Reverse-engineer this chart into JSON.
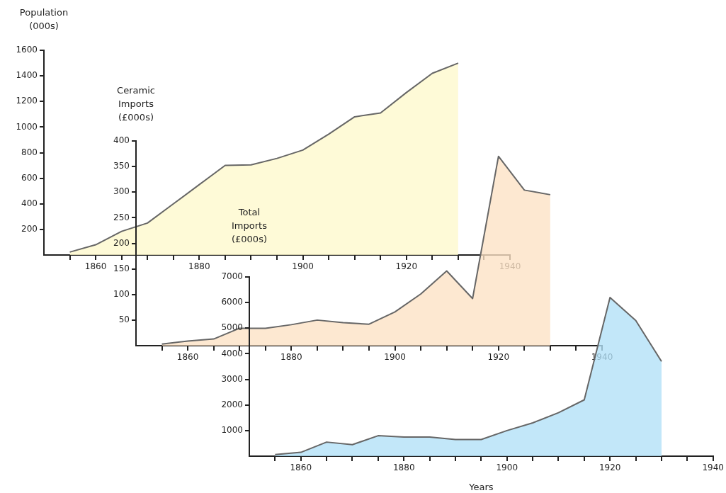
{
  "chart_data": [
    {
      "type": "area",
      "ylabel": "Population\n(000s)",
      "x": [
        1855,
        1860,
        1865,
        1870,
        1875,
        1880,
        1885,
        1890,
        1895,
        1900,
        1905,
        1910,
        1915,
        1920,
        1925,
        1930
      ],
      "series": [
        {
          "color": "#fef8cc",
          "values": [
            23,
            80,
            185,
            250,
            400,
            550,
            700,
            705,
            755,
            820,
            945,
            1080,
            1110,
            1270,
            1420,
            1500
          ]
        }
      ],
      "xlim": [
        1850,
        1940
      ],
      "xticks": [
        {
          "value": 1855,
          "label": null
        },
        1860,
        {
          "value": 1865,
          "label": null
        },
        {
          "value": 1870,
          "label": null
        },
        {
          "value": 1875,
          "label": null
        },
        1880,
        {
          "value": 1885,
          "label": null
        },
        {
          "value": 1890,
          "label": null
        },
        {
          "value": 1895,
          "label": null
        },
        1900,
        {
          "value": 1905,
          "label": null
        },
        {
          "value": 1910,
          "label": null
        },
        {
          "value": 1915,
          "label": null
        },
        1920,
        {
          "value": 1925,
          "label": null
        },
        {
          "value": 1930,
          "label": null
        },
        {
          "value": 1935,
          "label": null
        },
        1940
      ],
      "ylim": [
        0,
        1600
      ],
      "yticks": [
        200,
        400,
        600,
        800,
        1000,
        1200,
        1400,
        1600
      ],
      "grid": false,
      "legend": false
    },
    {
      "type": "area",
      "ylabel": "Ceramic\nImports\n(£000s)",
      "x": [
        1855,
        1860,
        1865,
        1870,
        1875,
        1880,
        1885,
        1890,
        1895,
        1900,
        1905,
        1910,
        1915,
        1920,
        1925,
        1930
      ],
      "series": [
        {
          "color": "#fce2c4",
          "values": [
            3,
            9,
            13,
            34,
            34,
            41,
            50,
            45,
            42,
            66,
            101,
            146,
            92,
            370,
            304,
            295
          ]
        }
      ],
      "xlim": [
        1850,
        1940
      ],
      "xticks": [
        {
          "value": 1855,
          "label": null
        },
        1860,
        {
          "value": 1865,
          "label": null
        },
        {
          "value": 1870,
          "label": null
        },
        {
          "value": 1875,
          "label": null
        },
        1880,
        {
          "value": 1885,
          "label": null
        },
        {
          "value": 1890,
          "label": null
        },
        {
          "value": 1895,
          "label": null
        },
        1900,
        {
          "value": 1905,
          "label": null
        },
        {
          "value": 1910,
          "label": null
        },
        {
          "value": 1915,
          "label": null
        },
        1920,
        {
          "value": 1925,
          "label": null
        },
        {
          "value": 1930,
          "label": null
        },
        {
          "value": 1935,
          "label": null
        },
        1940
      ],
      "ylim": [
        0,
        400
      ],
      "yticks": [
        50,
        100,
        150,
        200,
        250,
        300,
        350,
        400
      ],
      "grid": false,
      "legend": false
    },
    {
      "type": "area",
      "ylabel": "Total\nImports\n(£000s)",
      "xlabel": "Years",
      "x": [
        1855,
        1860,
        1865,
        1870,
        1875,
        1880,
        1885,
        1890,
        1895,
        1900,
        1905,
        1910,
        1915,
        1920,
        1925,
        1930
      ],
      "series": [
        {
          "color": "#b1e0f7",
          "values": [
            60,
            150,
            550,
            450,
            800,
            750,
            750,
            650,
            650,
            1000,
            1300,
            1700,
            2200,
            6200,
            5300,
            3700
          ]
        }
      ],
      "xlim": [
        1850,
        1940
      ],
      "xticks": [
        {
          "value": 1855,
          "label": null
        },
        1860,
        {
          "value": 1865,
          "label": null
        },
        {
          "value": 1870,
          "label": null
        },
        {
          "value": 1875,
          "label": null
        },
        1880,
        {
          "value": 1885,
          "label": null
        },
        {
          "value": 1890,
          "label": null
        },
        {
          "value": 1895,
          "label": null
        },
        1900,
        {
          "value": 1905,
          "label": null
        },
        {
          "value": 1910,
          "label": null
        },
        {
          "value": 1915,
          "label": null
        },
        1920,
        {
          "value": 1925,
          "label": null
        },
        {
          "value": 1930,
          "label": null
        },
        {
          "value": 1935,
          "label": null
        },
        1940
      ],
      "ylim": [
        0,
        7000
      ],
      "yticks": [
        1000,
        2000,
        3000,
        4000,
        5000,
        6000,
        7000
      ],
      "grid": false,
      "legend": false
    }
  ]
}
